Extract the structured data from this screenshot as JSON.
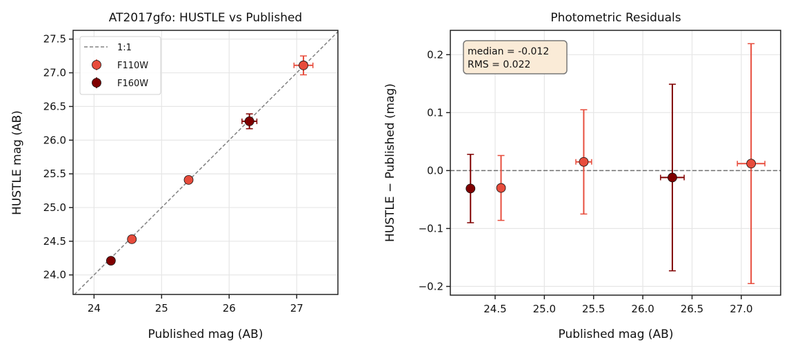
{
  "chart_data": [
    {
      "type": "scatter",
      "title": "AT2017gfo: HUSTLE vs Published",
      "xlabel": "Published mag (AB)",
      "ylabel": "HUSTLE mag (AB)",
      "xlim": [
        23.69,
        27.61
      ],
      "ylim": [
        23.71,
        27.63
      ],
      "xticks": [
        24,
        25,
        26,
        27
      ],
      "yticks": [
        24.0,
        24.5,
        25.0,
        25.5,
        26.0,
        26.5,
        27.0,
        27.5
      ],
      "xtick_labels": [
        "24",
        "25",
        "26",
        "27"
      ],
      "ytick_labels": [
        "24.0",
        "24.5",
        "25.0",
        "25.5",
        "26.0",
        "26.5",
        "27.0",
        "27.5"
      ],
      "grid": true,
      "legend": {
        "placement": "top-left",
        "entries": [
          "1:1",
          "F110W",
          "F160W"
        ]
      },
      "reference_line": {
        "name": "1:1",
        "slope": 1,
        "intercept": 0,
        "style": "dashed",
        "color": "#808080"
      },
      "series": [
        {
          "name": "F110W",
          "color": "#e74c3c",
          "points": [
            {
              "x": 24.56,
              "y": 24.53,
              "xerr": 0.02,
              "yerr": 0.02
            },
            {
              "x": 25.4,
              "y": 25.41,
              "xerr": 0.03,
              "yerr": 0.03
            },
            {
              "x": 27.1,
              "y": 27.11,
              "xerr": 0.14,
              "yerr": 0.14
            }
          ]
        },
        {
          "name": "F160W",
          "color": "#800000",
          "points": [
            {
              "x": 24.25,
              "y": 24.21,
              "xerr": 0.02,
              "yerr": 0.02
            },
            {
              "x": 26.3,
              "y": 26.28,
              "xerr": 0.11,
              "yerr": 0.11
            }
          ]
        }
      ]
    },
    {
      "type": "scatter",
      "title": "Photometric Residuals",
      "xlabel": "Published mag (AB)",
      "ylabel": "HUSTLE − Published (mag)",
      "xlim": [
        24.045,
        27.4
      ],
      "ylim": [
        -0.215,
        0.242
      ],
      "xticks": [
        24.5,
        25.0,
        25.5,
        26.0,
        26.5,
        27.0
      ],
      "yticks": [
        -0.2,
        -0.1,
        0.0,
        0.1,
        0.2
      ],
      "xtick_labels": [
        "24.5",
        "25.0",
        "25.5",
        "26.0",
        "26.5",
        "27.0"
      ],
      "ytick_labels": [
        "−0.2",
        "−0.1",
        "0.0",
        "0.1",
        "0.2"
      ],
      "grid": true,
      "reference_line": {
        "y": 0,
        "style": "dashed",
        "color": "#707070"
      },
      "annotation": {
        "lines": [
          "median = -0.012",
          "RMS = 0.022"
        ],
        "placement": "top-left",
        "background": "#faebd7"
      },
      "series": [
        {
          "name": "F110W",
          "color": "#e74c3c",
          "points": [
            {
              "x": 24.56,
              "y": -0.03,
              "xerr": 0.02,
              "yerr": 0.056
            },
            {
              "x": 25.4,
              "y": 0.015,
              "xerr": 0.08,
              "yerr": 0.09
            },
            {
              "x": 27.1,
              "y": 0.012,
              "xerr": 0.14,
              "yerr": 0.207
            }
          ]
        },
        {
          "name": "F160W",
          "color": "#800000",
          "points": [
            {
              "x": 24.25,
              "y": -0.031,
              "xerr": 0.02,
              "yerr": 0.059
            },
            {
              "x": 26.3,
              "y": -0.012,
              "xerr": 0.12,
              "yerr": 0.161
            }
          ]
        }
      ]
    }
  ]
}
